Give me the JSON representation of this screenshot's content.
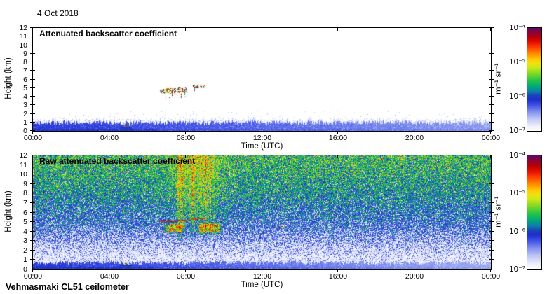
{
  "header": {
    "date": "4 Oct 2018"
  },
  "footer": {
    "instrument": "Vehmasmaki CL51 ceilometer"
  },
  "colorbar": {
    "unit": "m⁻¹ sr⁻¹",
    "tick_labels": [
      "10⁻⁴",
      "10⁻⁵",
      "10⁻⁶",
      "10⁻⁷"
    ]
  },
  "panels": [
    {
      "title": "Attenuated backscatter coefficient",
      "xlabel": "Time (UTC)",
      "ylabel": "Height (km)",
      "xticks": [
        "00:00",
        "04:00",
        "08:00",
        "12:00",
        "16:00",
        "20:00",
        "00:00"
      ],
      "yticks": [
        "0",
        "1",
        "2",
        "3",
        "4",
        "5",
        "6",
        "7",
        "8",
        "9",
        "10",
        "11",
        "12"
      ]
    },
    {
      "title": "Raw attenuated backscatter coefficient",
      "xlabel": "Time (UTC)",
      "ylabel": "Height (km)",
      "xticks": [
        "00:00",
        "04:00",
        "08:00",
        "12:00",
        "16:00",
        "20:00",
        "00:00"
      ],
      "yticks": [
        "0",
        "1",
        "2",
        "3",
        "4",
        "5",
        "6",
        "7",
        "8",
        "9",
        "10",
        "11",
        "12"
      ]
    }
  ],
  "chart_data": {
    "type": "heatmap",
    "title_date": "4 Oct 2018",
    "instrument": "Vehmasmaki CL51 ceilometer",
    "x": {
      "label": "Time (UTC)",
      "range_hours": [
        0,
        24
      ],
      "ticks": [
        "00:00",
        "04:00",
        "08:00",
        "12:00",
        "16:00",
        "20:00",
        "00:00"
      ]
    },
    "y": {
      "label": "Height (km)",
      "range_km": [
        0,
        12
      ],
      "tick_step_km": 1
    },
    "color_scale": {
      "unit": "m⁻¹ sr⁻¹",
      "type": "log",
      "min": 1e-07,
      "max": 0.0001,
      "tick_labels": [
        "10⁻⁴",
        "10⁻⁵",
        "10⁻⁶",
        "10⁻⁷"
      ],
      "legend_position": "right"
    },
    "colormap": [
      [
        0.0,
        "#ffffff"
      ],
      [
        0.05,
        "#eceefb"
      ],
      [
        0.12,
        "#bcc5f4"
      ],
      [
        0.19,
        "#7e8eee"
      ],
      [
        0.25,
        "#4052e6"
      ],
      [
        0.305,
        "#1e2cce"
      ],
      [
        0.345,
        "#1747b2"
      ],
      [
        0.385,
        "#0d7fae"
      ],
      [
        0.43,
        "#00a878"
      ],
      [
        0.49,
        "#25c447"
      ],
      [
        0.555,
        "#7dd828"
      ],
      [
        0.615,
        "#cbe818"
      ],
      [
        0.66,
        "#f2e00e"
      ],
      [
        0.7,
        "#ffc400"
      ],
      [
        0.75,
        "#ff8a00"
      ],
      [
        0.8,
        "#ff4d00"
      ],
      [
        0.855,
        "#ea1200"
      ],
      [
        0.905,
        "#bc0000"
      ],
      [
        0.95,
        "#910331"
      ],
      [
        1.0,
        "#5d0a64"
      ]
    ],
    "panels": [
      {
        "title": "Attenuated backscatter coefficient",
        "summary": "Processed quicklook: mostly clear sky. Boundary-layer aerosol band from 0 up to ~1.2 km all 24 h (beta ~1e-6 m-1 sr-1, strongest 00:00-06:00). Cloud/aerosol layer detections (mixed high-backscatter pixels) at 4.3-4.9 km between ~06:40 and 08:05 UTC and at 5.0-5.4 km between ~08:20 and 09:00 UTC. A few precipitation/drizzle pixels at 0.5-0.9 km around 04:30-05:00 UTC.",
        "features": [
          {
            "kind": "aerosol-band",
            "t_hours": [
              0,
              24
            ],
            "h_km": [
              0,
              1.2
            ],
            "beta": "~1e-6"
          },
          {
            "kind": "cloud-layer",
            "t_hours": [
              6.67,
              8.08
            ],
            "h_km": [
              4.3,
              4.9
            ],
            "beta": "1e-6..1e-4"
          },
          {
            "kind": "cloud-layer",
            "t_hours": [
              8.37,
              9.05
            ],
            "h_km": [
              5.0,
              5.4
            ],
            "beta": "1e-6..1e-4"
          },
          {
            "kind": "drizzle-specks",
            "t_hours": [
              4.5,
              5.05
            ],
            "h_km": [
              0.5,
              0.9
            ]
          }
        ],
        "render": {
          "seed": 42,
          "kind": "processed",
          "band": {
            "top_km": 0.95,
            "wiggle_km": 0.5,
            "fringe_km": 0.6,
            "u_left": 0.285,
            "u_right": 0.175,
            "dark_strip": {
              "h_km": 0.28,
              "t_end": 6.5,
              "boost": 0.035
            },
            "dark_blob": {
              "t0": 4.55,
              "t1": 5.2,
              "h_km": 0.5,
              "u": 0.325
            }
          },
          "specks": {
            "max_km": 2.3,
            "prob": 0.015
          },
          "clusters": [
            {
              "t0": 6.67,
              "t1": 8.08,
              "h0": 4.28,
              "h1": 4.9,
              "slope_km": 0.18,
              "density": 0.55,
              "streak_prob": 0.2,
              "streak_len_km": 0.55
            },
            {
              "t0": 8.37,
              "t1": 9.05,
              "h0": 4.98,
              "h1": 5.38,
              "slope_km": 0.0,
              "density": 0.5,
              "streak_prob": 0.05,
              "streak_len_km": 0.3
            }
          ],
          "dots": {
            "t0": 4.5,
            "t1": 5.05,
            "h0": 0.5,
            "h1": 0.9,
            "count": 13,
            "palette": [
              0.88,
              0.72,
              0.6,
              0.46
            ]
          }
        }
      },
      {
        "title": "Raw attenuated backscatter coefficient",
        "summary": "Raw range-corrected signal: background-light noise everywhere, increasing with height (white/pale blue below ~2 km, blue 2-6 km, green 6-12 km with yellow specks near 12 km). Strong noise/echo plume ~07:00-10:30 UTC reaching orange-red above ~5 km; cloud echoes (yellow/orange with red streaks) at 3.7-5.3 km between ~06:45 and 10:00 UTC; small orange echo near 4.3 km at ~12:50 UTC; solid blue boundary-layer band 0-0.8 km, darkest before ~06:00.",
        "features": [
          {
            "kind": "noise-gradient",
            "h_km": [
              0,
              12
            ],
            "beta": "1e-7 (low) to ~3e-6 (12 km)"
          },
          {
            "kind": "noise-plume",
            "t_hours": [
              6.9,
              10.5
            ],
            "h_km": [
              3,
              12
            ],
            "beta": "up to ~1e-5"
          },
          {
            "kind": "cloud-echo",
            "t_hours": [
              6.75,
              8.05
            ],
            "h_km": [
              3.75,
              5.1
            ],
            "beta": "~1e-5, red streak at 5.0 km"
          },
          {
            "kind": "cloud-echo",
            "t_hours": [
              8.55,
              9.95
            ],
            "h_km": [
              3.7,
              5.3
            ],
            "beta": "~1e-5, red streak at 5.3 km"
          },
          {
            "kind": "small-echo",
            "t_hours": [
              12.65,
              13.2
            ],
            "h_km": [
              4.25,
              4.5
            ]
          },
          {
            "kind": "boundary-layer-band",
            "t_hours": [
              0,
              24
            ],
            "h_km": [
              0,
              0.8
            ]
          },
          {
            "kind": "drizzle-specks",
            "t_hours": [
              4.68,
              4.98
            ],
            "h_km": [
              0.45,
              0.8
            ]
          }
        ],
        "render": {
          "seed": 1337,
          "kind": "raw",
          "base_profile": [
            [
              0,
              0.1
            ],
            [
              1.2,
              0.1
            ],
            [
              2,
              0.155
            ],
            [
              3,
              0.205
            ],
            [
              4,
              0.26
            ],
            [
              5,
              0.3
            ],
            [
              6,
              0.335
            ],
            [
              8,
              0.4
            ],
            [
              10,
              0.445
            ],
            [
              12,
              0.475
            ]
          ],
          "noise_sigma": 0.105,
          "gap_prob": [
            [
              0,
              0.55
            ],
            [
              1.2,
              0.55
            ],
            [
              3,
              0.3
            ],
            [
              5,
              0.13
            ],
            [
              8,
              0.045
            ],
            [
              12,
              0.03
            ]
          ],
          "top_specks": {
            "min_km": 10.3,
            "prob": 0.05,
            "boost": 0.16
          },
          "band": {
            "top_km": 0.72,
            "wiggle_km": 0.4,
            "u_left": 0.29,
            "u_right": 0.155,
            "dark_strip": {
              "h_km": 0.3,
              "t_end": 6.5,
              "boost": 0.035
            },
            "dark_blob": {
              "t0": 4.55,
              "t1": 5.2,
              "h_km": 0.5,
              "u": 0.325
            }
          },
          "plume": {
            "t_center": 8.55,
            "t_sigma": 1.15,
            "h_start_km": 3.0,
            "h_full_km": 5.5,
            "boost": 0.17,
            "col_jitter": 0.6,
            "hot_col_prob": 0.1,
            "hot_boost": 0.1
          },
          "blobs": [
            {
              "t0": 6.75,
              "t1": 8.05,
              "h0": 3.75,
              "h1": 4.95,
              "add": 0.32,
              "red_spec_prob": 0.07
            },
            {
              "t0": 8.55,
              "t1": 9.95,
              "h0": 3.7,
              "h1": 5.0,
              "add": 0.36,
              "red_spec_prob": 0.09
            }
          ],
          "streaks": [
            {
              "t0": 6.6,
              "t1": 8.05,
              "h": 5.02,
              "slope_km": 0.15,
              "halfw_km": 0.07,
              "u": 0.82,
              "prob": 0.8
            },
            {
              "t0": 8.2,
              "t1": 9.2,
              "h": 5.3,
              "slope_km": 0.05,
              "halfw_km": 0.06,
              "u": 0.79,
              "prob": 0.6
            },
            {
              "t0": 12.65,
              "t1": 13.2,
              "h": 4.35,
              "slope_km": 0.1,
              "halfw_km": 0.08,
              "u": 0.7,
              "prob": 0.45
            }
          ],
          "dots": {
            "t0": 4.68,
            "t1": 4.98,
            "h0": 0.45,
            "h1": 0.8,
            "count": 9,
            "palette": [
              0.85,
              0.68,
              0.55
            ]
          }
        }
      }
    ]
  }
}
